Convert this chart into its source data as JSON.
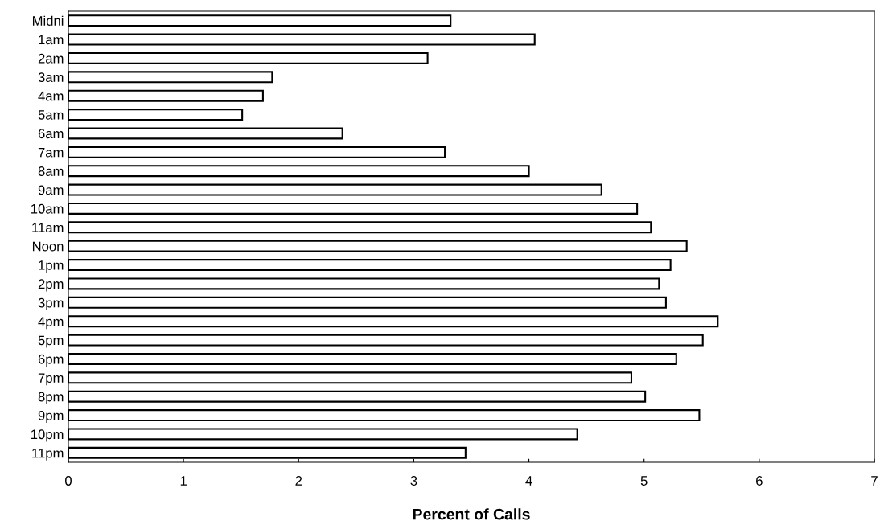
{
  "chart_data": {
    "type": "bar",
    "orientation": "horizontal",
    "xlabel": "Percent of Calls",
    "categories": [
      "Midni",
      "1am",
      "2am",
      "3am",
      "4am",
      "5am",
      "6am",
      "7am",
      "8am",
      "9am",
      "10am",
      "11am",
      "Noon",
      "1pm",
      "2pm",
      "3pm",
      "4pm",
      "5pm",
      "6pm",
      "7pm",
      "8pm",
      "9pm",
      "10pm",
      "11pm"
    ],
    "values": [
      3.32,
      4.05,
      3.12,
      1.77,
      1.69,
      1.51,
      2.38,
      3.27,
      4.0,
      4.63,
      4.94,
      5.06,
      5.37,
      5.23,
      5.13,
      5.19,
      5.64,
      5.51,
      5.28,
      4.89,
      5.01,
      5.48,
      4.42,
      3.45
    ],
    "color": "#ffffff",
    "xlim": [
      0,
      7
    ],
    "xticks": [
      0,
      1,
      2,
      3,
      4,
      5,
      6,
      7
    ],
    "grid": false,
    "legend": false
  }
}
